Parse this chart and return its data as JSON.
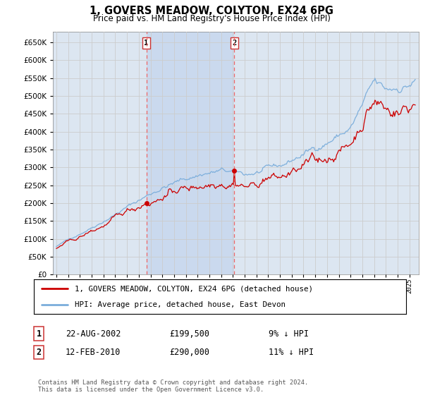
{
  "title": "1, GOVERS MEADOW, COLYTON, EX24 6PG",
  "subtitle": "Price paid vs. HM Land Registry's House Price Index (HPI)",
  "ytick_values": [
    0,
    50000,
    100000,
    150000,
    200000,
    250000,
    300000,
    350000,
    400000,
    450000,
    500000,
    550000,
    600000,
    650000
  ],
  "ylim": [
    0,
    680000
  ],
  "grid_color": "#cccccc",
  "bg_color": "#dce6f1",
  "hpi_color": "#7aaddb",
  "price_color": "#cc0000",
  "dashed_line_color": "#ee6666",
  "shade_color": "#c8d8ee",
  "transaction1_year": 2002.64,
  "transaction1_price": 199500,
  "transaction2_year": 2010.12,
  "transaction2_price": 290000,
  "legend_house_label": "1, GOVERS MEADOW, COLYTON, EX24 6PG (detached house)",
  "legend_hpi_label": "HPI: Average price, detached house, East Devon",
  "transaction1_label": "1",
  "transaction1_date": "22-AUG-2002",
  "transaction1_amount": "£199,500",
  "transaction1_hpi": "9% ↓ HPI",
  "transaction2_label": "2",
  "transaction2_date": "12-FEB-2010",
  "transaction2_amount": "£290,000",
  "transaction2_hpi": "11% ↓ HPI",
  "footer": "Contains HM Land Registry data © Crown copyright and database right 2024.\nThis data is licensed under the Open Government Licence v3.0."
}
